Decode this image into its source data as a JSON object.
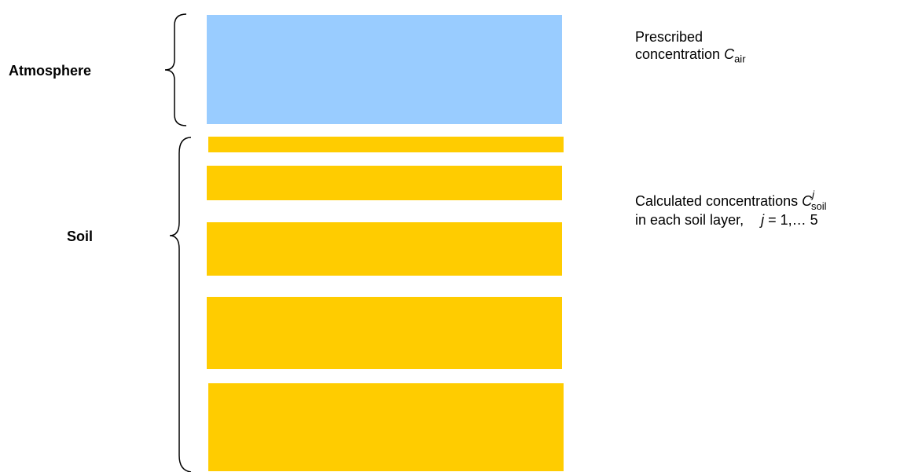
{
  "labels": {
    "atmosphere": "Atmosphere",
    "soil": "Soil"
  },
  "atmosphere_desc": {
    "line1": "Prescribed",
    "line2_prefix": "concentration ",
    "symbol": "C",
    "subscript": "air"
  },
  "soil_desc": {
    "line1_prefix": "Calculated concentrations ",
    "symbol": "C",
    "superscript": "j",
    "subscript": "soil",
    "line2_prefix": "in each soil layer,",
    "index": "j",
    "range": " = 1,… 5"
  },
  "colors": {
    "atmosphere": "#99ccff",
    "soil": "#ffcc00"
  },
  "soil_layer_count": 5
}
